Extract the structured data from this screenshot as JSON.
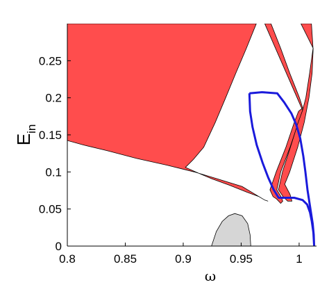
{
  "chart_data": {
    "type": "area",
    "xlabel": "ω",
    "ylabel": "E",
    "ylabel_subscript": "in",
    "xlim": [
      0.8,
      1.015
    ],
    "ylim": [
      0,
      0.3
    ],
    "x_ticks": [
      "0.8",
      "0.85",
      "0.9",
      "0.95",
      "1"
    ],
    "x_tick_values": [
      0.8,
      0.85,
      0.9,
      0.95,
      1.0
    ],
    "y_ticks": [
      "0",
      "0.05",
      "0.1",
      "0.15",
      "0.2",
      "0.25"
    ],
    "y_tick_values": [
      0,
      0.05,
      0.1,
      0.15,
      0.2,
      0.25
    ],
    "colors": {
      "red_region": "#ff4d4d",
      "gray_region": "#d6d6d6",
      "blue_curve": "#1a1adb",
      "outline": "#000000"
    },
    "red_main_region": [
      [
        0.8,
        0.3
      ],
      [
        0.9631,
        0.3
      ],
      [
        0.9544,
        0.2663
      ],
      [
        0.9454,
        0.2333
      ],
      [
        0.9366,
        0.2
      ],
      [
        0.9276,
        0.1667
      ],
      [
        0.9177,
        0.1333
      ],
      [
        0.9087,
        0.1167
      ],
      [
        0.9019,
        0.1061
      ],
      [
        0.9106,
        0.1
      ],
      [
        0.9244,
        0.0909
      ],
      [
        0.9404,
        0.0818
      ],
      [
        0.955,
        0.0727
      ],
      [
        0.9654,
        0.0667
      ],
      [
        0.9703,
        0.0621
      ],
      [
        0.9732,
        0.0606
      ],
      [
        0.9703,
        0.0621
      ],
      [
        0.9508,
        0.0803
      ],
      [
        0.9289,
        0.0909
      ],
      [
        0.9095,
        0.1
      ],
      [
        0.886,
        0.1091
      ],
      [
        0.8597,
        0.1182
      ],
      [
        0.8341,
        0.1288
      ],
      [
        0.8138,
        0.1364
      ],
      [
        0.8,
        0.1424
      ]
    ],
    "red_band_1": [
      [
        0.9703,
        0.3
      ],
      [
        0.9757,
        0.3
      ],
      [
        0.9841,
        0.2667
      ],
      [
        0.9919,
        0.2333
      ],
      [
        1.0003,
        0.2
      ],
      [
        1.0031,
        0.1864
      ],
      [
        0.9995,
        0.1818
      ],
      [
        0.9958,
        0.1667
      ],
      [
        0.9886,
        0.1333
      ],
      [
        0.9802,
        0.1
      ],
      [
        0.9748,
        0.0758
      ],
      [
        0.9775,
        0.0667
      ],
      [
        0.9805,
        0.0636
      ],
      [
        0.9841,
        0.0576
      ],
      [
        0.9859,
        0.0606
      ],
      [
        0.9844,
        0.0667
      ],
      [
        0.9808,
        0.0758
      ],
      [
        0.9841,
        0.1
      ],
      [
        0.9922,
        0.1333
      ],
      [
        0.9995,
        0.1667
      ],
      [
        1.003,
        0.183
      ]
    ],
    "red_band_2": [
      [
        1.0015,
        0.3
      ],
      [
        1.0106,
        0.3
      ],
      [
        1.012,
        0.2667
      ],
      [
        1.0091,
        0.2333
      ],
      [
        1.0058,
        0.2
      ],
      [
        1.003,
        0.1833
      ],
      [
        0.9991,
        0.1667
      ],
      [
        0.9925,
        0.1333
      ],
      [
        0.9856,
        0.1
      ],
      [
        0.9822,
        0.0758
      ],
      [
        0.9862,
        0.0667
      ],
      [
        0.9901,
        0.0606
      ],
      [
        0.9938,
        0.0606
      ],
      [
        0.9922,
        0.0697
      ],
      [
        0.9876,
        0.0833
      ],
      [
        0.9919,
        0.1
      ],
      [
        0.9988,
        0.1333
      ],
      [
        1.0044,
        0.1667
      ],
      [
        1.0085,
        0.2
      ],
      [
        1.0112,
        0.2333
      ],
      [
        1.0121,
        0.2667
      ]
    ],
    "gray_region": [
      [
        0.9244,
        0.0
      ],
      [
        0.9286,
        0.0197
      ],
      [
        0.9337,
        0.0333
      ],
      [
        0.9391,
        0.0409
      ],
      [
        0.9445,
        0.0439
      ],
      [
        0.9508,
        0.0409
      ],
      [
        0.9556,
        0.0303
      ],
      [
        0.9577,
        0.0152
      ],
      [
        0.9583,
        0.0
      ]
    ],
    "blue_curve": [
      [
        0.9571,
        0.2061
      ],
      [
        0.9679,
        0.2076
      ],
      [
        0.9811,
        0.2061
      ],
      [
        0.9871,
        0.1939
      ],
      [
        0.9934,
        0.1788
      ],
      [
        0.9976,
        0.1636
      ],
      [
        1.0009,
        0.1455
      ],
      [
        1.0036,
        0.1212
      ],
      [
        1.0054,
        0.1
      ],
      [
        1.0072,
        0.0758
      ],
      [
        1.0087,
        0.0606
      ],
      [
        1.0102,
        0.0455
      ],
      [
        1.0117,
        0.0303
      ],
      [
        1.0126,
        0.0152
      ],
      [
        1.0129,
        0.0015
      ],
      [
        1.0123,
        0.0182
      ],
      [
        1.0109,
        0.0333
      ],
      [
        1.0094,
        0.0455
      ],
      [
        1.0069,
        0.0561
      ],
      [
        1.003,
        0.0621
      ],
      [
        0.9958,
        0.0652
      ],
      [
        0.9868,
        0.0652
      ],
      [
        0.9823,
        0.0652
      ],
      [
        0.9781,
        0.0758
      ],
      [
        0.9733,
        0.0924
      ],
      [
        0.9685,
        0.1121
      ],
      [
        0.9634,
        0.1364
      ],
      [
        0.9598,
        0.1606
      ],
      [
        0.9577,
        0.1818
      ],
      [
        0.9571,
        0.2061
      ]
    ]
  }
}
